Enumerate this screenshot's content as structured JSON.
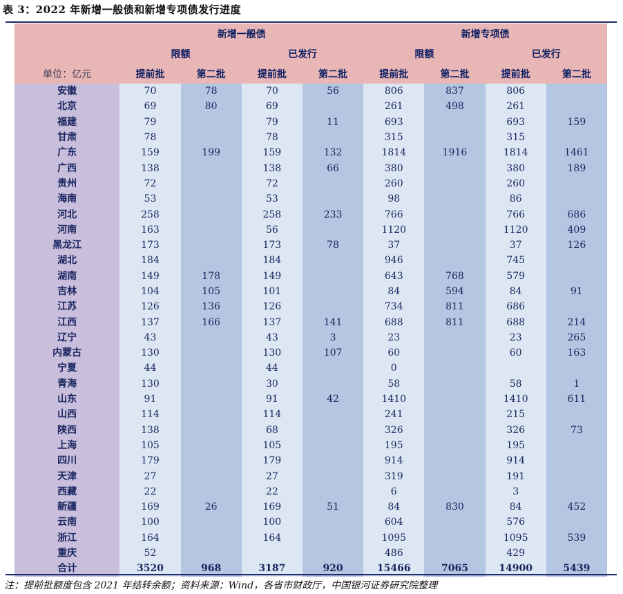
{
  "title": "表 3：2022 年新增一般债和新增专项债发行进度",
  "header": {
    "group1": "新增一般债",
    "group2": "新增专项债",
    "quota": "限额",
    "issued": "已发行",
    "unit": "单位：亿元",
    "batch1": "提前批",
    "batch2": "第二批"
  },
  "rows": [
    {
      "prov": "安徽",
      "v": [
        "70",
        "78",
        "70",
        "56",
        "806",
        "837",
        "806",
        ""
      ]
    },
    {
      "prov": "北京",
      "v": [
        "69",
        "80",
        "69",
        "",
        "261",
        "498",
        "261",
        ""
      ]
    },
    {
      "prov": "福建",
      "v": [
        "79",
        "",
        "79",
        "11",
        "693",
        "",
        "693",
        "159"
      ]
    },
    {
      "prov": "甘肃",
      "v": [
        "78",
        "",
        "78",
        "",
        "315",
        "",
        "315",
        ""
      ]
    },
    {
      "prov": "广东",
      "v": [
        "159",
        "199",
        "159",
        "132",
        "1814",
        "1916",
        "1814",
        "1461"
      ]
    },
    {
      "prov": "广西",
      "v": [
        "138",
        "",
        "138",
        "66",
        "380",
        "",
        "380",
        "189"
      ]
    },
    {
      "prov": "贵州",
      "v": [
        "72",
        "",
        "72",
        "",
        "260",
        "",
        "260",
        ""
      ]
    },
    {
      "prov": "海南",
      "v": [
        "53",
        "",
        "53",
        "",
        "98",
        "",
        "86",
        ""
      ]
    },
    {
      "prov": "河北",
      "v": [
        "258",
        "",
        "258",
        "233",
        "766",
        "",
        "766",
        "686"
      ]
    },
    {
      "prov": "河南",
      "v": [
        "163",
        "",
        "56",
        "",
        "1120",
        "",
        "1120",
        "409"
      ]
    },
    {
      "prov": "黑龙江",
      "v": [
        "173",
        "",
        "173",
        "78",
        "37",
        "",
        "37",
        "126"
      ]
    },
    {
      "prov": "湖北",
      "v": [
        "184",
        "",
        "184",
        "",
        "946",
        "",
        "745",
        ""
      ]
    },
    {
      "prov": "湖南",
      "v": [
        "149",
        "178",
        "149",
        "",
        "643",
        "768",
        "579",
        ""
      ]
    },
    {
      "prov": "吉林",
      "v": [
        "104",
        "105",
        "101",
        "",
        "84",
        "594",
        "84",
        "91"
      ]
    },
    {
      "prov": "江苏",
      "v": [
        "126",
        "136",
        "126",
        "",
        "734",
        "811",
        "686",
        ""
      ]
    },
    {
      "prov": "江西",
      "v": [
        "137",
        "166",
        "137",
        "141",
        "688",
        "811",
        "688",
        "214"
      ]
    },
    {
      "prov": "辽宁",
      "v": [
        "43",
        "",
        "43",
        "3",
        "23",
        "",
        "23",
        "265"
      ]
    },
    {
      "prov": "内蒙古",
      "v": [
        "130",
        "",
        "130",
        "107",
        "60",
        "",
        "60",
        "163"
      ]
    },
    {
      "prov": "宁夏",
      "v": [
        "44",
        "",
        "44",
        "",
        "0",
        "",
        "",
        ""
      ]
    },
    {
      "prov": "青海",
      "v": [
        "130",
        "",
        "30",
        "",
        "58",
        "",
        "58",
        "1"
      ]
    },
    {
      "prov": "山东",
      "v": [
        "91",
        "",
        "91",
        "42",
        "1410",
        "",
        "1410",
        "611"
      ]
    },
    {
      "prov": "山西",
      "v": [
        "114",
        "",
        "114",
        "",
        "241",
        "",
        "215",
        ""
      ]
    },
    {
      "prov": "陕西",
      "v": [
        "138",
        "",
        "68",
        "",
        "326",
        "",
        "326",
        "73"
      ]
    },
    {
      "prov": "上海",
      "v": [
        "105",
        "",
        "105",
        "",
        "195",
        "",
        "195",
        ""
      ]
    },
    {
      "prov": "四川",
      "v": [
        "179",
        "",
        "179",
        "",
        "914",
        "",
        "914",
        ""
      ]
    },
    {
      "prov": "天津",
      "v": [
        "27",
        "",
        "27",
        "",
        "319",
        "",
        "191",
        ""
      ]
    },
    {
      "prov": "西藏",
      "v": [
        "22",
        "",
        "22",
        "",
        "6",
        "",
        "3",
        ""
      ]
    },
    {
      "prov": "新疆",
      "v": [
        "169",
        "26",
        "169",
        "51",
        "84",
        "830",
        "84",
        "452"
      ]
    },
    {
      "prov": "云南",
      "v": [
        "100",
        "",
        "100",
        "",
        "604",
        "",
        "576",
        ""
      ]
    },
    {
      "prov": "浙江",
      "v": [
        "164",
        "",
        "164",
        "",
        "1095",
        "",
        "1095",
        "539"
      ]
    },
    {
      "prov": "重庆",
      "v": [
        "52",
        "",
        "",
        "",
        "486",
        "",
        "429",
        ""
      ]
    },
    {
      "prov": "合计",
      "v": [
        "3520",
        "968",
        "3187",
        "920",
        "15466",
        "7065",
        "14900",
        "5439"
      ]
    }
  ],
  "note": "注：提前批额度包含 2021 年结转余额；资料来源：Wind，各省市财政厅，中国银河证券研究院整理"
}
